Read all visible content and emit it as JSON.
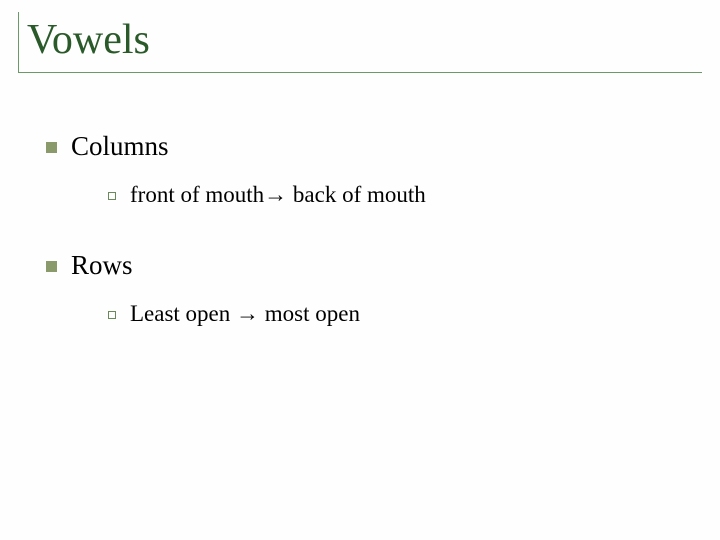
{
  "slide": {
    "title": "Vowels",
    "title_color": "#2a5a2a",
    "title_fontsize": 42,
    "border_color": "#6a9a6a",
    "background_color": "#fefefe",
    "bullets": [
      {
        "label": "Columns",
        "sub": [
          {
            "text": "front of mouth→ back of mouth"
          }
        ]
      },
      {
        "label": "Rows",
        "sub": [
          {
            "text": "Least open → most open"
          }
        ]
      }
    ],
    "bullet_fontsize": 27,
    "sub_fontsize": 23,
    "bullet_marker_color": "#8a9a6a",
    "sub_marker_border": "#6a8a5a",
    "text_color": "#000000"
  }
}
